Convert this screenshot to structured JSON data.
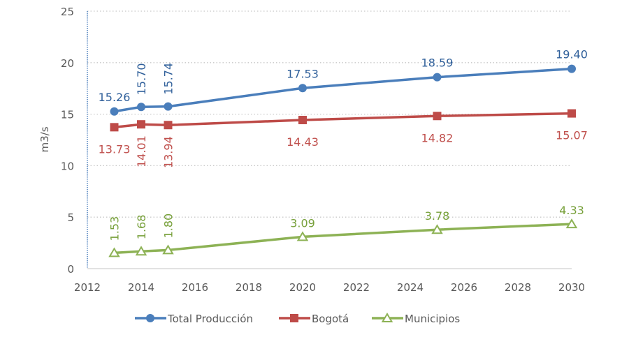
{
  "chart_data": {
    "type": "line",
    "title": "",
    "xlabel": "",
    "ylabel": "m3/s",
    "xlim": [
      2012,
      2030
    ],
    "ylim": [
      0,
      25
    ],
    "x_ticks": [
      2012,
      2014,
      2016,
      2018,
      2020,
      2022,
      2024,
      2026,
      2028,
      2030
    ],
    "x_tick_labels": [
      "2012",
      "2014",
      "2016",
      "2018",
      "2020",
      "2022",
      "2024",
      "2026",
      "2028",
      "2030"
    ],
    "y_ticks": [
      0,
      5,
      10,
      15,
      20,
      25
    ],
    "y_tick_labels": [
      "0",
      "5",
      "10",
      "15",
      "20",
      "25"
    ],
    "grid": "horizontal-dotted",
    "legend_position": "bottom",
    "x": [
      2013,
      2014,
      2015,
      2020,
      2025,
      2030
    ],
    "series": [
      {
        "name": "Total Producción",
        "color": "#4a7ebb",
        "label_color": "#2f5f9a",
        "marker": "circle",
        "values": [
          15.26,
          15.7,
          15.74,
          17.53,
          18.59,
          19.4
        ],
        "labels": [
          "15.26",
          "15.70",
          "15.74",
          "17.53",
          "18.59",
          "19.40"
        ]
      },
      {
        "name": "Bogotá",
        "color": "#be4b48",
        "label_color": "#c0504d",
        "marker": "square",
        "values": [
          13.73,
          14.01,
          13.94,
          14.43,
          14.82,
          15.07
        ],
        "labels": [
          "13.73",
          "14.01",
          "13.94",
          "14.43",
          "14.82",
          "15.07"
        ]
      },
      {
        "name": "Municipios",
        "color": "#8db255",
        "label_color": "#77a03a",
        "marker": "triangle",
        "values": [
          1.53,
          1.68,
          1.8,
          3.09,
          3.78,
          4.33
        ],
        "labels": [
          "1.53",
          "1.68",
          "1.80",
          "3.09",
          "3.78",
          "4.33"
        ]
      }
    ]
  }
}
